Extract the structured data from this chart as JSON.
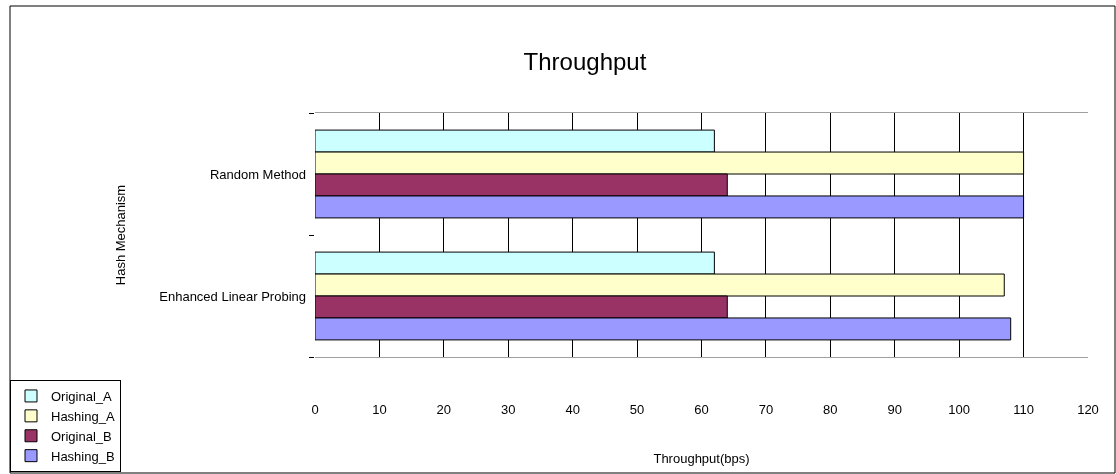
{
  "chart_data": {
    "type": "bar",
    "orientation": "horizontal",
    "title": "Throughput",
    "xlabel": "Throughput(bps)",
    "ylabel": "Hash Mechanism",
    "categories": [
      "Random Method",
      "Enhanced Linear Probing"
    ],
    "series": [
      {
        "name": "Original_A",
        "color": "#ccffff",
        "values": [
          62,
          62
        ]
      },
      {
        "name": "Hashing_A",
        "color": "#ffffcc",
        "values": [
          110,
          107
        ]
      },
      {
        "name": "Original_B",
        "color": "#993366",
        "values": [
          64,
          64
        ]
      },
      {
        "name": "Hashing_B",
        "color": "#9999ff",
        "values": [
          110,
          108
        ]
      }
    ],
    "xlim": [
      0,
      120
    ],
    "xticks": [
      0,
      10,
      20,
      30,
      40,
      50,
      60,
      70,
      80,
      90,
      100,
      110,
      120
    ],
    "grid": "x",
    "legend": "bottom left"
  }
}
